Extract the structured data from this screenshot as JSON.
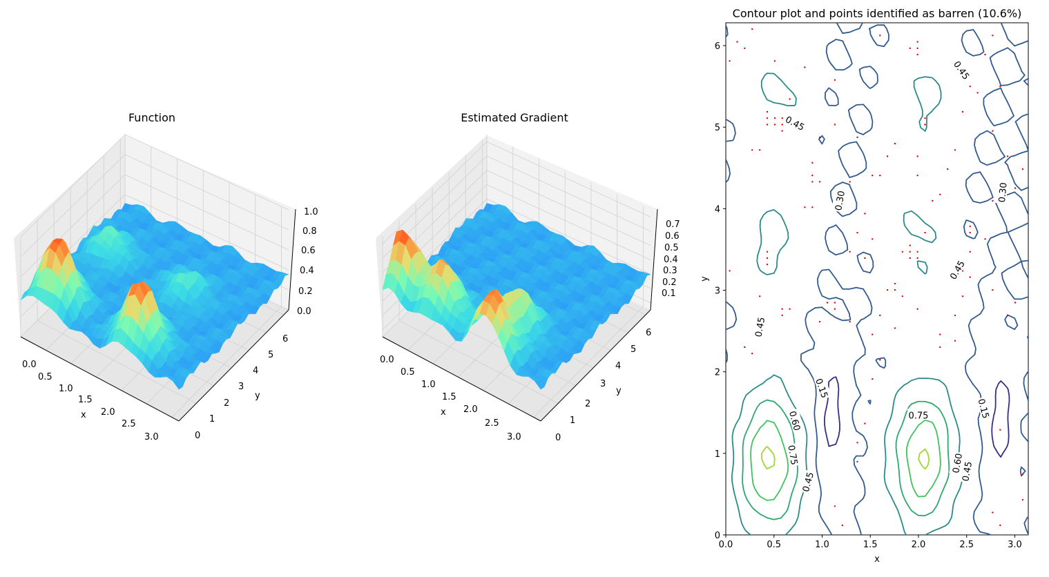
{
  "figure": {
    "colors": {
      "rainbow_low": "#5a3df0",
      "rainbow_mid": "#3fd4e0",
      "rainbow_high": "#ff1a00",
      "barren_points": "#e00000",
      "pane_back": "#f2f2f2",
      "pane_side": "#e8e8e8",
      "grid": "#d0d0d0"
    }
  },
  "chart_data": [
    {
      "type": "surface3d",
      "title": "Function",
      "xlabel": "x",
      "ylabel": "y",
      "xlim": [
        0,
        3.14
      ],
      "ylim": [
        0,
        6.28
      ],
      "zlim": [
        0,
        1.0
      ],
      "x_ticks": [
        "0.0",
        "0.5",
        "1.0",
        "1.5",
        "2.0",
        "2.5",
        "3.0"
      ],
      "y_ticks": [
        "0",
        "1",
        "2",
        "3",
        "4",
        "5",
        "6"
      ],
      "z_ticks": [
        "0.0",
        "0.2",
        "0.4",
        "0.6",
        "0.8",
        "1.0"
      ],
      "colormap": "rainbow",
      "peaks": [
        {
          "x": 0.45,
          "y": 0.9,
          "z": 0.95
        },
        {
          "x": 2.05,
          "y": 0.95,
          "z": 0.93
        },
        {
          "x": 0.5,
          "y": 3.8,
          "z": 0.55
        },
        {
          "x": 2.0,
          "y": 3.7,
          "z": 0.52
        }
      ]
    },
    {
      "type": "surface3d",
      "title": "Estimated Gradient",
      "xlabel": "x",
      "ylabel": "y",
      "xlim": [
        0,
        3.14
      ],
      "ylim": [
        0,
        6.28
      ],
      "zlim": [
        0.05,
        0.75
      ],
      "x_ticks": [
        "0.0",
        "0.5",
        "1.0",
        "1.5",
        "2.0",
        "2.5",
        "3.0"
      ],
      "y_ticks": [
        "0",
        "1",
        "2",
        "3",
        "4",
        "5",
        "6"
      ],
      "z_ticks": [
        "0.1",
        "0.2",
        "0.3",
        "0.4",
        "0.5",
        "0.6",
        "0.7"
      ],
      "colormap": "rainbow",
      "peaks": [
        {
          "x": 0.1,
          "y": 0.9,
          "z": 0.72
        },
        {
          "x": 0.9,
          "y": 0.9,
          "z": 0.62
        },
        {
          "x": 2.05,
          "y": 0.4,
          "z": 0.68
        },
        {
          "x": 2.05,
          "y": 1.8,
          "z": 0.55
        }
      ]
    },
    {
      "type": "contour",
      "title": "Contour plot and points identified as barren (10.6%)",
      "xlabel": "x",
      "ylabel": "y",
      "xlim": [
        0,
        3.14
      ],
      "ylim": [
        0,
        6.28
      ],
      "x_ticks": [
        "0.0",
        "0.5",
        "1.0",
        "1.5",
        "2.0",
        "2.5",
        "3.0"
      ],
      "y_ticks": [
        "0",
        "1",
        "2",
        "3",
        "4",
        "5",
        "6"
      ],
      "levels": [
        0.15,
        0.3,
        0.45,
        0.6,
        0.75,
        0.9
      ],
      "level_labels": [
        {
          "text": "0.45",
          "x": 0.72,
          "y": 5.05,
          "angle": 28
        },
        {
          "text": "0.30",
          "x": 1.18,
          "y": 4.1,
          "angle": -80
        },
        {
          "text": "0.45",
          "x": 2.45,
          "y": 5.7,
          "angle": 55
        },
        {
          "text": "0.30",
          "x": 2.87,
          "y": 4.2,
          "angle": -85
        },
        {
          "text": "0.45",
          "x": 2.4,
          "y": 3.25,
          "angle": -60
        },
        {
          "text": "0.45",
          "x": 0.35,
          "y": 2.55,
          "angle": -80
        },
        {
          "text": "0.15",
          "x": 1.0,
          "y": 1.8,
          "angle": 70
        },
        {
          "text": "0.60",
          "x": 0.72,
          "y": 1.4,
          "angle": 75
        },
        {
          "text": "0.75",
          "x": 0.7,
          "y": 0.98,
          "angle": 80
        },
        {
          "text": "0.45",
          "x": 0.85,
          "y": 0.65,
          "angle": -75
        },
        {
          "text": "0.75",
          "x": 2.0,
          "y": 1.47,
          "angle": 0
        },
        {
          "text": "0.15",
          "x": 2.68,
          "y": 1.55,
          "angle": 75
        },
        {
          "text": "0.60",
          "x": 2.4,
          "y": 0.88,
          "angle": -80
        },
        {
          "text": "0.45",
          "x": 2.5,
          "y": 0.78,
          "angle": -80
        }
      ],
      "barren_fraction": "10.6%"
    }
  ]
}
